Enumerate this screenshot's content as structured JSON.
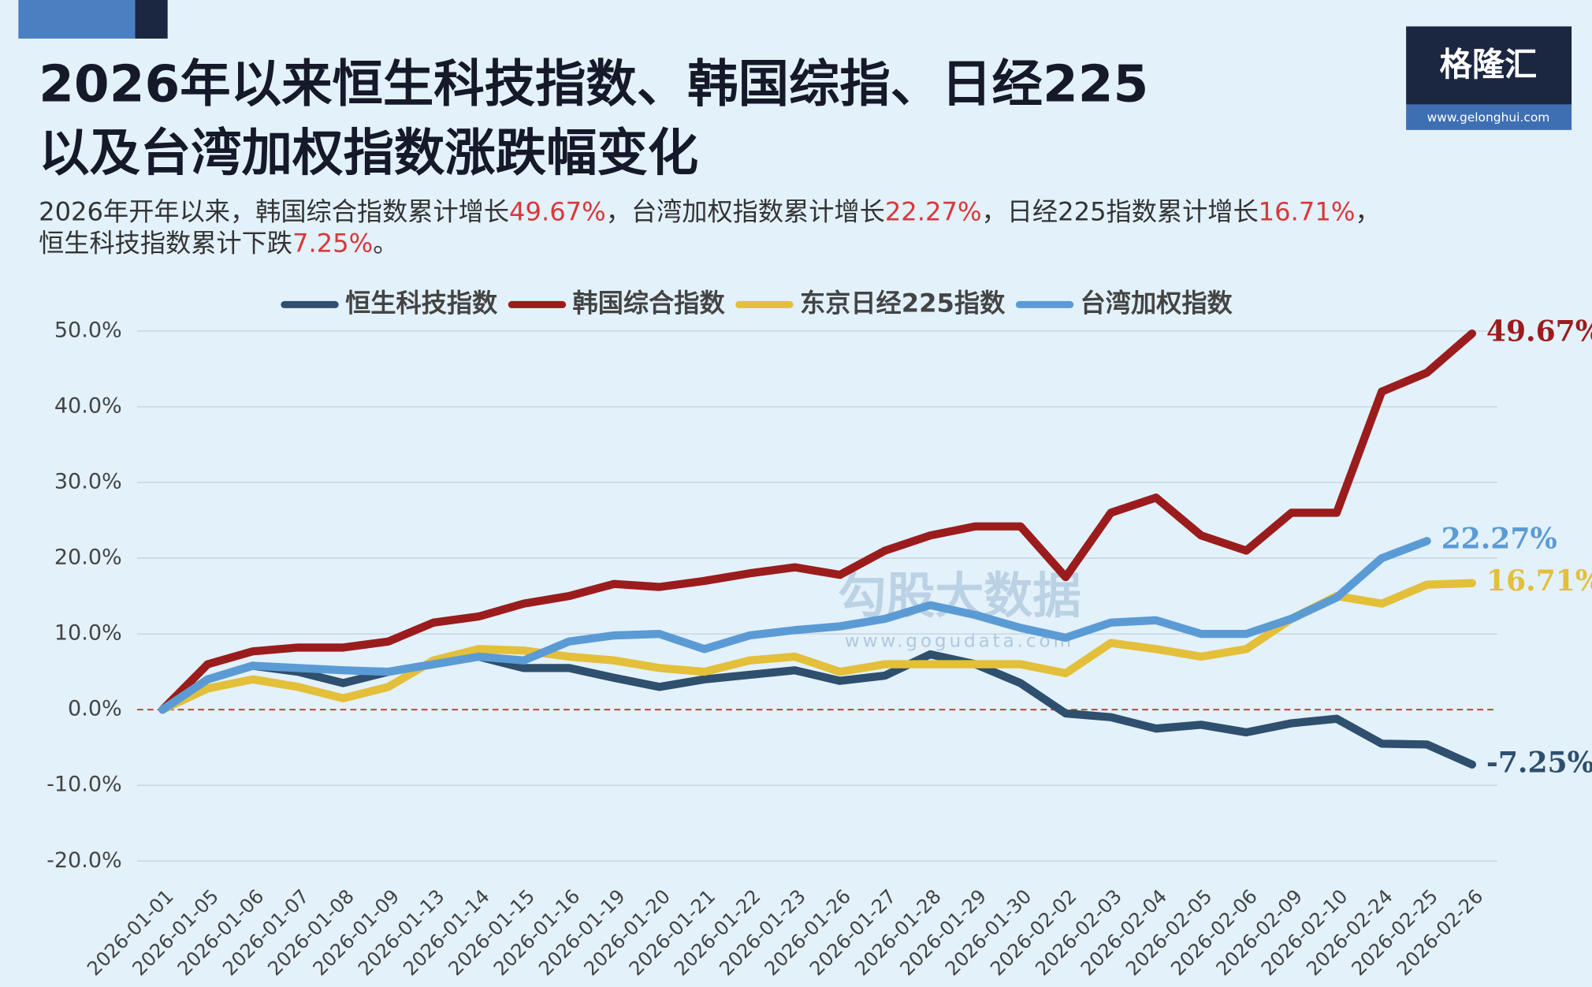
{
  "chart_data": {
    "type": "line",
    "title": [
      "2026年以来恒生科技指数、韩国综指、日经225",
      "以及台湾加权指数涨跌幅变化"
    ],
    "subtitle": [
      [
        "2026年开年以来，韩国综合指数累计增长",
        "49.67%",
        "，台湾加权指数累计增长",
        "22.27%",
        "，日经225指数累计增长",
        "16.71%",
        "，"
      ],
      [
        "恒生科技指数累计下跌",
        "7.25%",
        "。"
      ]
    ],
    "highlight_color": "#d9373a",
    "logo": {
      "text": "格隆汇",
      "url": "www.gelonghui.com"
    },
    "watermark": {
      "text": "勾股大数据",
      "url": "www.gogudata.com"
    },
    "categories": [
      "2026-01-01",
      "2026-01-05",
      "2026-01-06",
      "2026-01-07",
      "2026-01-08",
      "2026-01-09",
      "2026-01-13",
      "2026-01-14",
      "2026-01-15",
      "2026-01-16",
      "2026-01-19",
      "2026-01-20",
      "2026-01-21",
      "2026-01-22",
      "2026-01-23",
      "2026-01-26",
      "2026-01-27",
      "2026-01-28",
      "2026-01-29",
      "2026-01-30",
      "2026-02-02",
      "2026-02-03",
      "2026-02-04",
      "2026-02-05",
      "2026-02-06",
      "2026-02-09",
      "2026-02-10",
      "2026-02-24",
      "2026-02-25",
      "2026-02-26"
    ],
    "series": [
      {
        "name": "恒生科技指数",
        "color": "#2e4f6e",
        "end_label": "-7.25%",
        "values": [
          0,
          4,
          5.8,
          5,
          3.5,
          5,
          6,
          7,
          5.5,
          5.5,
          4.2,
          3,
          4,
          4.6,
          5.2,
          3.8,
          4.5,
          7.3,
          6,
          3.5,
          -0.5,
          -1,
          -2.5,
          -2,
          -3,
          -1.8,
          -1.2,
          -4.5,
          -4.6,
          -7.25
        ]
      },
      {
        "name": "韩国综合指数",
        "color": "#9b1c1c",
        "end_label": "49.67%",
        "values": [
          0,
          6,
          7.7,
          8.2,
          8.2,
          9,
          11.5,
          12.3,
          14,
          15,
          16.6,
          16.2,
          17,
          18,
          18.8,
          17.8,
          21,
          23,
          24.2,
          24.2,
          17.5,
          26,
          28,
          23,
          21,
          26,
          26,
          42,
          44.5,
          49.67
        ]
      },
      {
        "name": "东京日经225指数",
        "color": "#e3bf3a",
        "end_label": "16.71%",
        "values": [
          0,
          2.8,
          4,
          3,
          1.5,
          3,
          6.5,
          8,
          7.8,
          7,
          6.5,
          5.5,
          5,
          6.5,
          7,
          5,
          6,
          6,
          6,
          6,
          4.8,
          8.8,
          8,
          7,
          8,
          12,
          15,
          14,
          16.5,
          16.71
        ]
      },
      {
        "name": "台湾加权指数",
        "color": "#5b9bd5",
        "end_label": "22.27%",
        "values": [
          0,
          4,
          5.8,
          5.5,
          5.2,
          5,
          6,
          7,
          6.5,
          9,
          9.8,
          10,
          8,
          9.8,
          10.5,
          11,
          12,
          13.8,
          12.5,
          10.8,
          9.5,
          11.5,
          11.8,
          10,
          10,
          12,
          14.8,
          20,
          22.27,
          null
        ]
      }
    ],
    "ylim": [
      -20,
      50
    ],
    "yticks": [
      {
        "value": -20,
        "label": "-20.0%"
      },
      {
        "value": -10,
        "label": "-10.0%"
      },
      {
        "value": 0,
        "label": "0.0%"
      },
      {
        "value": 10,
        "label": "10.0%"
      },
      {
        "value": 20,
        "label": "20.0%"
      },
      {
        "value": 30,
        "label": "30.0%"
      },
      {
        "value": 40,
        "label": "40.0%"
      },
      {
        "value": 50,
        "label": "50.0%"
      }
    ],
    "grid": true,
    "legend": "top"
  }
}
